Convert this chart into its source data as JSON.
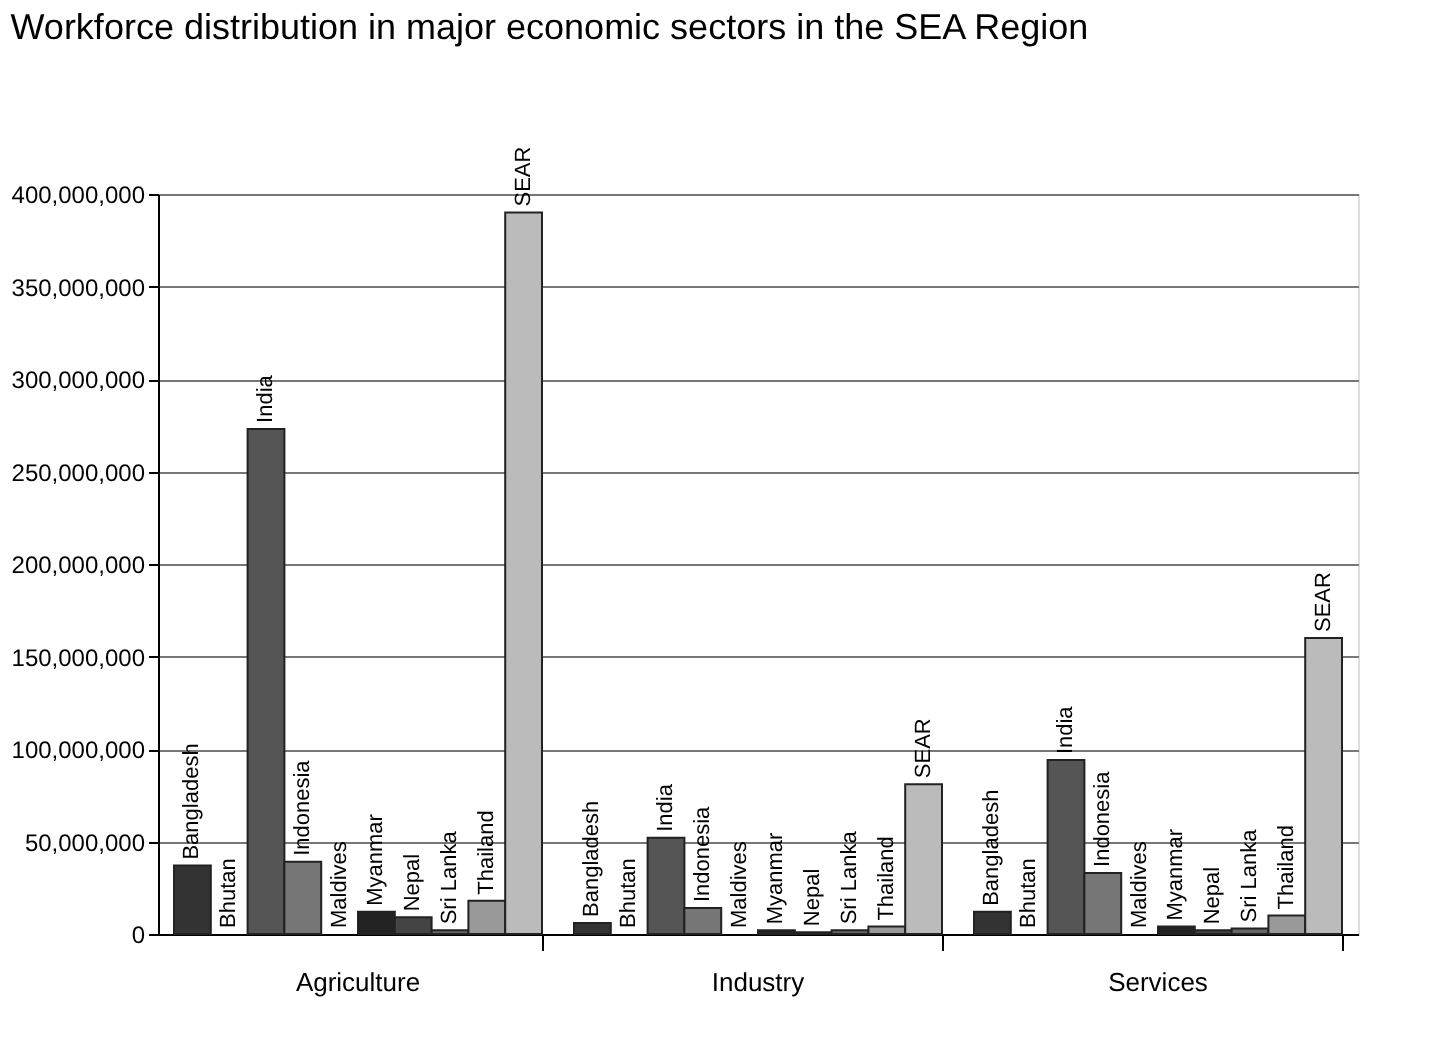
{
  "chart_data": {
    "type": "bar",
    "title": "Workforce distribution in major economic sectors in the SEA Region",
    "categories": [
      "Agriculture",
      "Industry",
      "Services"
    ],
    "series": [
      {
        "name": "Bangladesh",
        "color": "#333333",
        "values": [
          37000000,
          6000000,
          12000000
        ]
      },
      {
        "name": "Bhutan",
        "values": [
          null,
          null,
          null
        ]
      },
      {
        "name": "India",
        "color": "#555555",
        "values": [
          273000000,
          52000000,
          94000000
        ]
      },
      {
        "name": "Indonesia",
        "color": "#777777",
        "values": [
          39000000,
          14000000,
          33000000
        ]
      },
      {
        "name": "Maldives",
        "values": [
          null,
          null,
          null
        ]
      },
      {
        "name": "Myanmar",
        "color": "#222222",
        "values": [
          12000000,
          2000000,
          4000000
        ]
      },
      {
        "name": "Nepal",
        "color": "#444444",
        "values": [
          9000000,
          1000000,
          2000000
        ]
      },
      {
        "name": "Sri Lanka",
        "color": "#666666",
        "values": [
          2000000,
          2000000,
          3000000
        ]
      },
      {
        "name": "Thailand",
        "color": "#999999",
        "values": [
          18000000,
          4000000,
          10000000
        ]
      },
      {
        "name": "SEAR",
        "color": "#bbbbbb",
        "values": [
          390000000,
          81000000,
          160000000
        ]
      }
    ],
    "ylim": [
      0,
      400000000
    ],
    "yticks": [
      0,
      {
        "value": 50000000,
        "label": "50,000,000"
      },
      {
        "value": 100000000,
        "label": "100,000,000"
      },
      {
        "value": 150000000,
        "label": "150,000,000"
      },
      {
        "value": 200000000,
        "label": "200,000,000"
      },
      {
        "value": 250000000,
        "label": "250,000,000"
      },
      {
        "value": 300000000,
        "label": "300,000,000"
      },
      {
        "value": 350000000,
        "label": "350,000,000"
      },
      {
        "value": 400000000,
        "label": "400,000,000"
      }
    ],
    "grid": "y",
    "legend": false
  }
}
